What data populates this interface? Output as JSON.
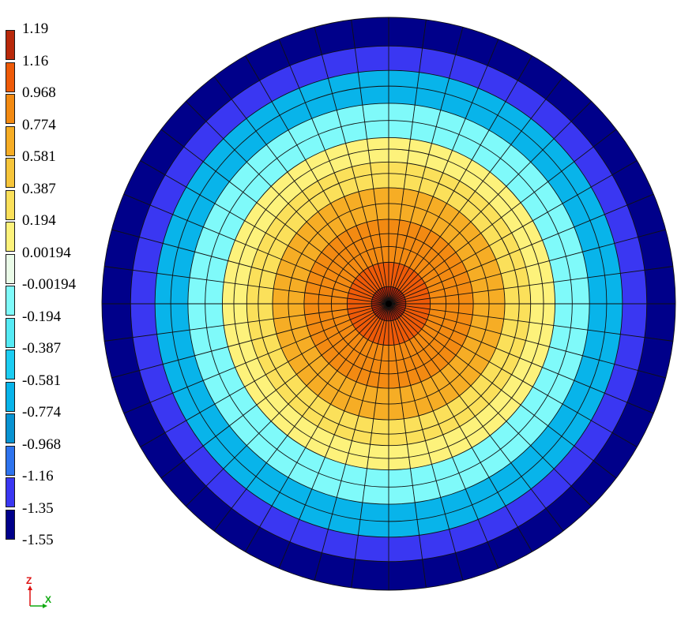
{
  "chart_data": {
    "type": "heatmap",
    "legend": {
      "tick_labels": [
        "1.19",
        "1.16",
        "0.968",
        "0.774",
        "0.581",
        "0.387",
        "0.194",
        "0.00194",
        "-0.00194",
        "-0.194",
        "-0.387",
        "-0.581",
        "-0.774",
        "-0.968",
        "-1.16",
        "-1.35",
        "-1.55"
      ],
      "colors": [
        "#b8280a",
        "#ee5a08",
        "#f38a12",
        "#f6ad25",
        "#f6c53a",
        "#fbe05a",
        "#fdf27b",
        "#eafbe8",
        "#7ffafa",
        "#55eaf4",
        "#1ccdf2",
        "#08b4ea",
        "#0893d2",
        "#2e73ee",
        "#3a37f2",
        "#00008a"
      ]
    },
    "rings": [
      {
        "level_index": 0,
        "r_outer_frac": 0.06
      },
      {
        "level_index": 1,
        "r_outer_frac": 0.145
      },
      {
        "level_index": 2,
        "r_outer_frac": 0.295
      },
      {
        "level_index": 3,
        "r_outer_frac": 0.405
      },
      {
        "level_index": 5,
        "r_outer_frac": 0.495
      },
      {
        "level_index": 6,
        "r_outer_frac": 0.58
      },
      {
        "level_index": 8,
        "r_outer_frac": 0.7
      },
      {
        "level_index": 11,
        "r_outer_frac": 0.815
      },
      {
        "level_index": 14,
        "r_outer_frac": 0.9
      },
      {
        "level_index": 15,
        "r_outer_frac": 1.0
      }
    ],
    "mesh": {
      "radial_divisions": [
        0.06,
        0.145,
        0.2,
        0.245,
        0.295,
        0.35,
        0.405,
        0.455,
        0.495,
        0.54,
        0.58,
        0.64,
        0.7,
        0.76,
        0.815,
        0.9,
        1.0
      ],
      "sectors": 48
    },
    "axes": {
      "vertical": "Z",
      "horizontal": "X"
    }
  }
}
